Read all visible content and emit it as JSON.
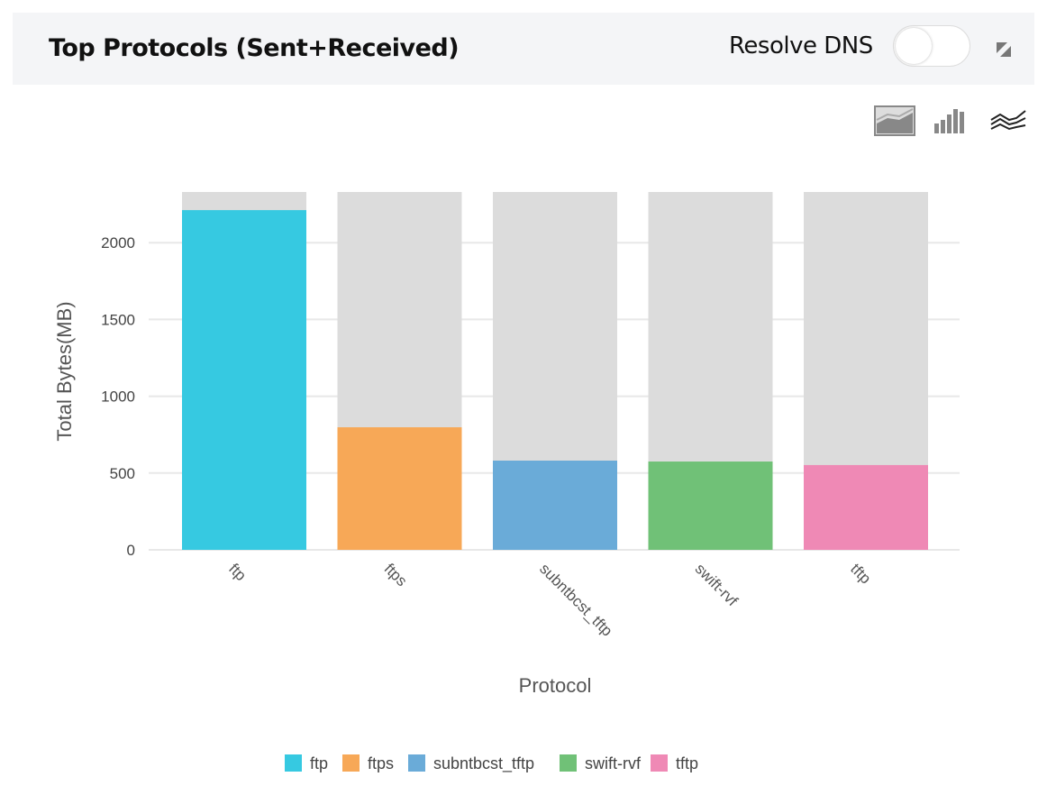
{
  "header": {
    "title": "Top Protocols (Sent+Received)",
    "resolve_dns_label": "Resolve DNS",
    "resolve_dns_on": false
  },
  "toolbar": {
    "icons": [
      "area-chart-icon",
      "bar-chart-icon",
      "line-chart-icon"
    ]
  },
  "chart_data": {
    "type": "bar",
    "title": "",
    "xlabel": "Protocol",
    "ylabel": "Total Bytes(MB)",
    "categories": [
      "ftp",
      "ftps",
      "subntbcst_tftp",
      "swift-rvf",
      "tftp"
    ],
    "values": [
      2212,
      798,
      581,
      575,
      552
    ],
    "colors": [
      "#36c9e1",
      "#f7a857",
      "#6aabd8",
      "#70c177",
      "#ef89b5"
    ],
    "background_bar_color": "#dcdcdc",
    "ylim": [
      0,
      2330
    ],
    "yticks": [
      0,
      500,
      1000,
      1500,
      2000
    ],
    "grid": true,
    "legend": "bottom"
  }
}
